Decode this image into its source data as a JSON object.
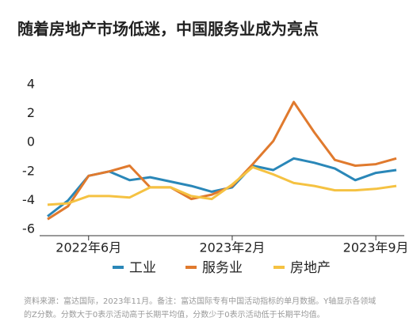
{
  "chart_data": {
    "type": "line",
    "title": "随着房地产市场低迷，中国服务业成为亮点",
    "categories": [
      null,
      null,
      "2022年6月",
      null,
      null,
      null,
      null,
      null,
      null,
      "2023年2月",
      null,
      null,
      null,
      null,
      null,
      null,
      "2023年9月",
      null
    ],
    "series": [
      {
        "name": "工业",
        "color": "#2a87b8",
        "values": [
          -5.1,
          -4.0,
          -2.3,
          -2.0,
          -2.6,
          -2.4,
          -2.7,
          -3.0,
          -3.4,
          -3.1,
          -1.6,
          -1.9,
          -1.1,
          -1.4,
          -1.8,
          -2.6,
          -2.1,
          -1.9
        ]
      },
      {
        "name": "服务业",
        "color": "#e07a2e",
        "values": [
          -5.3,
          -4.4,
          -2.3,
          -2.0,
          -1.6,
          -3.1,
          -3.1,
          -3.9,
          -3.6,
          -3.0,
          -1.5,
          0.1,
          2.8,
          0.7,
          -1.2,
          -1.6,
          -1.5,
          -1.1
        ]
      },
      {
        "name": "房地产",
        "color": "#f5c242",
        "values": [
          -4.3,
          -4.2,
          -3.7,
          -3.7,
          -3.8,
          -3.1,
          -3.1,
          -3.7,
          -3.9,
          -2.9,
          -1.7,
          -2.2,
          -2.8,
          -3.0,
          -3.3,
          -3.3,
          -3.2,
          -3.0
        ]
      }
    ],
    "ylim": [
      -6,
      4
    ],
    "yticks": [
      -6,
      -4,
      -2,
      0,
      2,
      4
    ],
    "note": [
      "资料来源：富达国际，2023年11月。备注：富达国际专有中国活动指标的单月数据。Y轴显示各领域",
      "的Z分数。分数大于0表示活动高于长期平均值，分数少于0表示活动低于长期平均值。"
    ]
  }
}
